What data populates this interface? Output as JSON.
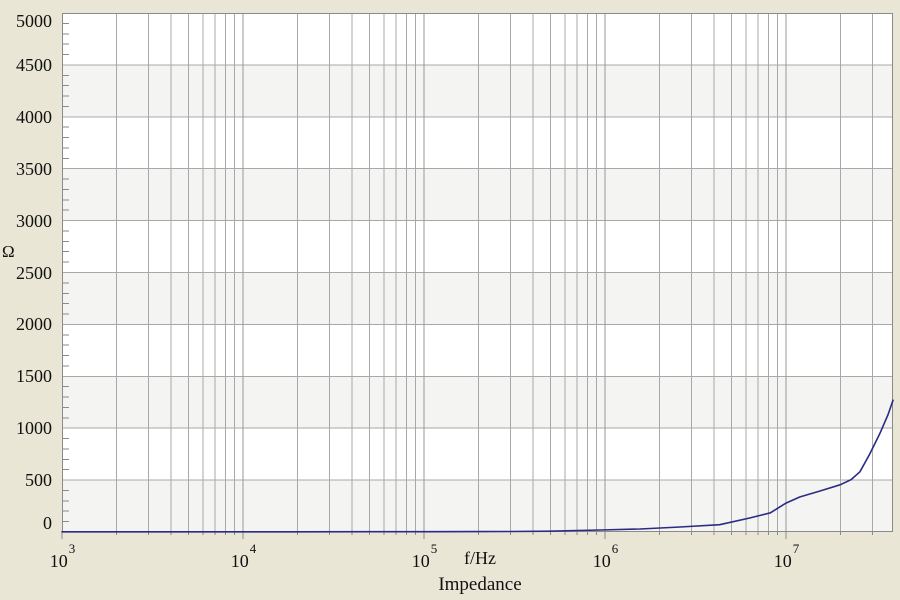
{
  "labels": {
    "title": "Impedance",
    "x_axis": "f/Hz",
    "y_unit": "Ω"
  },
  "colors": {
    "background": "#e9e6d5",
    "plot_background": "#ffffff",
    "band_shade": "#f4f4f2",
    "grid_minor": "#a8a8a8",
    "grid_major": "#979797",
    "frame": "#8a8a8a",
    "curve": "#2b2b84",
    "text": "#111111"
  },
  "chart_data": {
    "type": "line",
    "title": "Impedance",
    "xlabel": "f/Hz",
    "ylabel": "Ω",
    "x_scale": "log",
    "y_scale": "linear",
    "xlim": [
      1000,
      39000000
    ],
    "ylim": [
      0,
      5000
    ],
    "y_major_tick_step": 500,
    "y_minor_tick_step": 100,
    "y_tick_values": [
      5000,
      4500,
      4000,
      3500,
      3000,
      2500,
      2000,
      1500,
      1000,
      500,
      0
    ],
    "x_decade_ticks": [
      {
        "base": "10",
        "exp": "3",
        "value": 1000
      },
      {
        "base": "10",
        "exp": "4",
        "value": 10000
      },
      {
        "base": "10",
        "exp": "5",
        "value": 100000
      },
      {
        "base": "10",
        "exp": "6",
        "value": 1000000
      },
      {
        "base": "10",
        "exp": "7",
        "value": 10000000
      }
    ],
    "x_minor_multipliers": [
      2,
      3,
      4,
      5,
      6,
      7,
      8,
      9
    ],
    "grid": "vertical log gridlines (majors + minors) full height; horizontal gridlines every 500; alternating shaded 500-unit bands starting at 0-500",
    "legend": "none",
    "series": [
      {
        "name": "Impedance",
        "color": "#2b2b84",
        "points": [
          [
            1000,
            2
          ],
          [
            2000,
            2
          ],
          [
            5000,
            2
          ],
          [
            10000,
            2
          ],
          [
            20000,
            2
          ],
          [
            50000,
            3
          ],
          [
            100000,
            3
          ],
          [
            200000,
            4
          ],
          [
            300000,
            5
          ],
          [
            500000,
            8
          ],
          [
            700000,
            14
          ],
          [
            940000,
            19
          ],
          [
            1560000,
            29
          ],
          [
            2600000,
            48
          ],
          [
            4300000,
            70
          ],
          [
            6300000,
            135
          ],
          [
            8200000,
            185
          ],
          [
            10000000,
            278
          ],
          [
            11900000,
            337
          ],
          [
            15400000,
            395
          ],
          [
            19900000,
            455
          ],
          [
            22900000,
            505
          ],
          [
            25600000,
            580
          ],
          [
            29000000,
            750
          ],
          [
            33000000,
            950
          ],
          [
            36600000,
            1130
          ],
          [
            39000000,
            1270
          ]
        ]
      }
    ]
  }
}
